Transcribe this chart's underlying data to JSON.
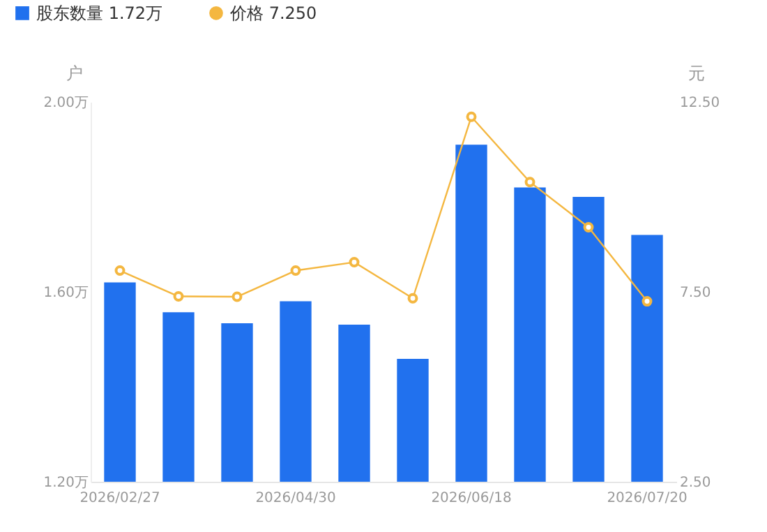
{
  "chart_data": {
    "type": "bar",
    "ylabel": "户",
    "y2label": "元",
    "categories": [
      "2026/02/27",
      null,
      null,
      "2026/04/30",
      null,
      null,
      "2026/06/18",
      null,
      null,
      "2026/07/20"
    ],
    "series": [
      {
        "name": "股东数量 1.72万",
        "color": "#2171ee",
        "values": [
          1.62,
          1.557,
          1.534,
          1.58,
          1.531,
          1.459,
          1.91,
          1.82,
          1.8,
          1.72
        ]
      },
      {
        "name": "价格 7.250",
        "type": "line",
        "axis": "y2",
        "color": "#f4b740",
        "values": [
          8.06,
          7.38,
          7.37,
          8.06,
          8.28,
          7.33,
          12.11,
          10.39,
          9.2,
          7.25
        ]
      }
    ],
    "ylim": [
      1.2,
      2.0
    ],
    "yticks": [
      {
        "value": 1.2,
        "label": "1.20万"
      },
      {
        "value": 1.6,
        "label": "1.60万"
      },
      {
        "value": 2.0,
        "label": "2.00万"
      }
    ],
    "y2lim": [
      2.5,
      12.5
    ],
    "y2ticks": [
      {
        "value": 2.5,
        "label": "2.50"
      },
      {
        "value": 7.5,
        "label": "7.50"
      },
      {
        "value": 12.5,
        "label": "12.50"
      }
    ],
    "legend": "top left",
    "marker": "circle",
    "grid": false
  }
}
